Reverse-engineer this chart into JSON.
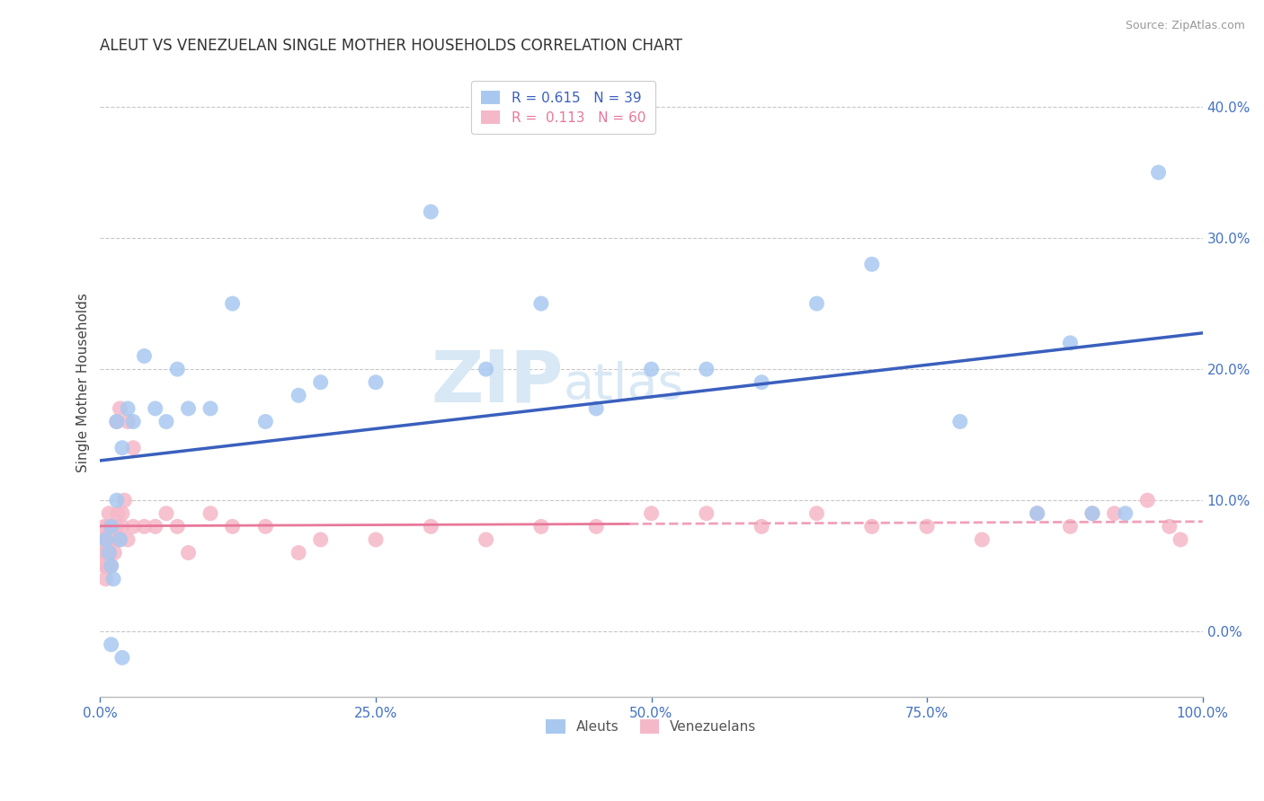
{
  "title": "ALEUT VS VENEZUELAN SINGLE MOTHER HOUSEHOLDS CORRELATION CHART",
  "source": "Source: ZipAtlas.com",
  "ylabel": "Single Mother Households",
  "xlabel": "",
  "watermark_zip": "ZIP",
  "watermark_atlas": "atlas",
  "legend_aleut": "R = 0.615   N = 39",
  "legend_venezuelan": "R =  0.113   N = 60",
  "legend_labels": [
    "Aleuts",
    "Venezuelans"
  ],
  "aleut_x": [
    0.005,
    0.008,
    0.01,
    0.01,
    0.01,
    0.012,
    0.015,
    0.015,
    0.018,
    0.02,
    0.02,
    0.025,
    0.03,
    0.04,
    0.05,
    0.06,
    0.07,
    0.08,
    0.1,
    0.12,
    0.15,
    0.18,
    0.2,
    0.25,
    0.3,
    0.35,
    0.4,
    0.45,
    0.5,
    0.55,
    0.6,
    0.65,
    0.7,
    0.78,
    0.85,
    0.88,
    0.9,
    0.93,
    0.96
  ],
  "aleut_y": [
    0.07,
    0.06,
    0.08,
    -0.01,
    0.05,
    0.04,
    0.16,
    0.1,
    0.07,
    0.14,
    -0.02,
    0.17,
    0.16,
    0.21,
    0.17,
    0.16,
    0.2,
    0.17,
    0.17,
    0.25,
    0.16,
    0.18,
    0.19,
    0.19,
    0.32,
    0.2,
    0.25,
    0.17,
    0.2,
    0.2,
    0.19,
    0.25,
    0.28,
    0.16,
    0.09,
    0.22,
    0.09,
    0.09,
    0.35
  ],
  "venezuelan_x": [
    0.002,
    0.003,
    0.004,
    0.004,
    0.005,
    0.005,
    0.006,
    0.006,
    0.007,
    0.007,
    0.008,
    0.008,
    0.009,
    0.01,
    0.01,
    0.01,
    0.012,
    0.012,
    0.013,
    0.015,
    0.015,
    0.016,
    0.018,
    0.018,
    0.02,
    0.02,
    0.022,
    0.025,
    0.025,
    0.03,
    0.03,
    0.04,
    0.05,
    0.06,
    0.07,
    0.08,
    0.1,
    0.12,
    0.15,
    0.18,
    0.2,
    0.25,
    0.3,
    0.35,
    0.4,
    0.45,
    0.5,
    0.55,
    0.6,
    0.65,
    0.7,
    0.75,
    0.8,
    0.85,
    0.88,
    0.9,
    0.92,
    0.95,
    0.97,
    0.98
  ],
  "venezuelan_y": [
    0.07,
    0.06,
    0.08,
    0.05,
    0.04,
    0.06,
    0.05,
    0.07,
    0.06,
    0.08,
    0.07,
    0.09,
    0.06,
    0.07,
    0.08,
    0.05,
    0.08,
    0.07,
    0.06,
    0.16,
    0.08,
    0.09,
    0.07,
    0.17,
    0.08,
    0.09,
    0.1,
    0.07,
    0.16,
    0.14,
    0.08,
    0.08,
    0.08,
    0.09,
    0.08,
    0.06,
    0.09,
    0.08,
    0.08,
    0.06,
    0.07,
    0.07,
    0.08,
    0.07,
    0.08,
    0.08,
    0.09,
    0.09,
    0.08,
    0.09,
    0.08,
    0.08,
    0.07,
    0.09,
    0.08,
    0.09,
    0.09,
    0.1,
    0.08,
    0.07
  ],
  "aleut_color": "#a8c8f0",
  "venezuelan_color": "#f5b8c8",
  "aleut_line_color": "#3a5fbd",
  "venezuelan_line_color": "#e8789a",
  "venezuelan_dashed_color": "#f0a0b8",
  "background_color": "#ffffff",
  "grid_color": "#c8c8c8",
  "title_color": "#333333",
  "axis_label_color": "#444444",
  "tick_color": "#4472c4",
  "watermark_color": "#d8e8f5",
  "xmin": 0.0,
  "xmax": 1.0,
  "ymin": -0.05,
  "ymax": 0.43,
  "yticks": [
    0.0,
    0.1,
    0.2,
    0.3,
    0.4
  ],
  "ytick_labels": [
    "0.0%",
    "10.0%",
    "20.0%",
    "30.0%",
    "40.0%"
  ],
  "xticks": [
    0.0,
    0.25,
    0.5,
    0.75,
    1.0
  ],
  "xtick_labels": [
    "0.0%",
    "25.0%",
    "50.0%",
    "75.0%",
    "100.0%"
  ]
}
